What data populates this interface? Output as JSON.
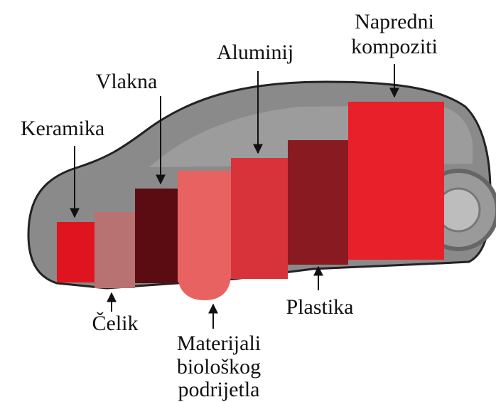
{
  "materials": [
    {
      "lines": [
        "Keramika"
      ]
    },
    {
      "lines": [
        "Čelik"
      ]
    },
    {
      "lines": [
        "Vlakna"
      ]
    },
    {
      "lines": [
        "Materijali",
        "biološkog",
        "podrijetla"
      ]
    },
    {
      "lines": [
        "Aluminij"
      ]
    },
    {
      "lines": [
        "Plastika"
      ]
    },
    {
      "lines": [
        "Napredni",
        "kompoziti"
      ]
    }
  ]
}
